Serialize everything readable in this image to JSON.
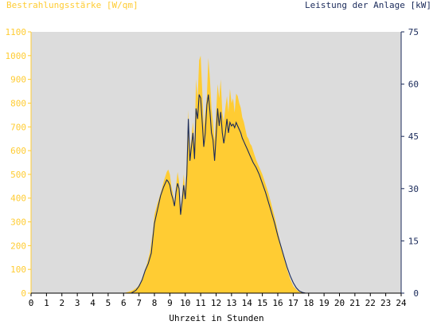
{
  "chart_data": {
    "type": "area",
    "ylabel_left": "Bestrahlungsstärke [W/qm]",
    "ylabel_right": "Leistung der Anlage [kW]",
    "xlabel": "Uhrzeit in Stunden",
    "x_ticks": [
      0,
      1,
      2,
      3,
      4,
      5,
      6,
      7,
      8,
      9,
      10,
      11,
      12,
      13,
      14,
      15,
      16,
      17,
      18,
      19,
      20,
      21,
      22,
      23,
      24
    ],
    "y_left_ticks": [
      0,
      100,
      200,
      300,
      400,
      500,
      600,
      700,
      800,
      900,
      1000,
      1100
    ],
    "y_right_ticks": [
      0,
      15,
      30,
      45,
      60,
      75
    ],
    "xlim": [
      0,
      24
    ],
    "ylim_left": [
      0,
      1100
    ],
    "ylim_right": [
      0,
      75
    ],
    "grid": false,
    "colors": {
      "plot_bg": "#dcdcdc",
      "irradiance_fill": "#ffcc33",
      "power_line": "#1a2a5a",
      "left_axis": "#ffcc33",
      "right_axis": "#1a2a5a"
    },
    "series": [
      {
        "name": "Bestrahlungsstärke [W/qm]",
        "axis": "left",
        "x": [
          6.0,
          6.3,
          6.6,
          6.9,
          7.1,
          7.3,
          7.5,
          7.7,
          7.9,
          8.0,
          8.2,
          8.4,
          8.6,
          8.8,
          8.9,
          9.0,
          9.1,
          9.2,
          9.3,
          9.4,
          9.5,
          9.6,
          9.7,
          9.8,
          9.9,
          10.0,
          10.1,
          10.2,
          10.3,
          10.4,
          10.5,
          10.6,
          10.7,
          10.8,
          10.9,
          11.0,
          11.1,
          11.2,
          11.3,
          11.4,
          11.5,
          11.6,
          11.7,
          11.8,
          11.9,
          12.0,
          12.1,
          12.2,
          12.3,
          12.4,
          12.5,
          12.6,
          12.7,
          12.8,
          12.9,
          13.0,
          13.1,
          13.2,
          13.3,
          13.4,
          13.5,
          13.6,
          13.7,
          13.8,
          13.9,
          14.0,
          14.1,
          14.2,
          14.3,
          14.4,
          14.5,
          14.6,
          14.8,
          15.0,
          15.2,
          15.4,
          15.6,
          15.8,
          16.0,
          16.2,
          16.4,
          16.6,
          16.8,
          17.0,
          17.2,
          17.4,
          17.6,
          17.8,
          18.0,
          18.2,
          18.4
        ],
        "values": [
          0,
          5,
          12,
          25,
          45,
          80,
          120,
          170,
          260,
          330,
          380,
          420,
          470,
          510,
          520,
          500,
          450,
          420,
          380,
          450,
          510,
          470,
          350,
          420,
          500,
          430,
          560,
          770,
          600,
          650,
          720,
          620,
          900,
          820,
          980,
          1000,
          850,
          700,
          760,
          830,
          990,
          900,
          780,
          720,
          640,
          760,
          880,
          820,
          900,
          760,
          720,
          780,
          830,
          760,
          860,
          800,
          820,
          760,
          840,
          830,
          800,
          780,
          740,
          720,
          690,
          660,
          650,
          630,
          620,
          600,
          580,
          560,
          530,
          500,
          460,
          420,
          370,
          320,
          260,
          200,
          150,
          100,
          60,
          30,
          15,
          5,
          2,
          0,
          0,
          0,
          0
        ],
        "note_fill": true
      },
      {
        "name": "Leistung der Anlage [kW]",
        "axis": "right",
        "x": [
          6.5,
          6.8,
          7.0,
          7.2,
          7.4,
          7.6,
          7.8,
          7.9,
          8.0,
          8.2,
          8.4,
          8.6,
          8.8,
          8.9,
          9.0,
          9.1,
          9.2,
          9.3,
          9.4,
          9.5,
          9.6,
          9.7,
          9.8,
          9.9,
          10.0,
          10.1,
          10.2,
          10.3,
          10.4,
          10.5,
          10.6,
          10.7,
          10.8,
          10.9,
          11.0,
          11.1,
          11.2,
          11.3,
          11.4,
          11.5,
          11.6,
          11.7,
          11.8,
          11.9,
          12.0,
          12.1,
          12.2,
          12.3,
          12.4,
          12.5,
          12.6,
          12.7,
          12.8,
          12.9,
          13.0,
          13.1,
          13.2,
          13.3,
          13.4,
          13.5,
          13.6,
          13.7,
          13.8,
          13.9,
          14.0,
          14.1,
          14.2,
          14.4,
          14.6,
          14.8,
          15.0,
          15.2,
          15.4,
          15.6,
          15.8,
          16.0,
          16.2,
          16.4,
          16.6,
          16.8,
          17.0,
          17.2,
          17.4,
          17.6,
          17.8,
          18.0,
          18.2,
          18.4
        ],
        "values": [
          0,
          0.8,
          2.0,
          3.8,
          6.5,
          8.5,
          11.5,
          16.0,
          20.0,
          24.0,
          28.0,
          30.5,
          32.5,
          32.0,
          31.0,
          28.5,
          27.0,
          25.0,
          29.0,
          31.5,
          30.0,
          22.5,
          26.5,
          31.0,
          27.0,
          34.0,
          50.0,
          38.0,
          42.0,
          46.0,
          38.5,
          53.0,
          50.0,
          57.0,
          56.0,
          49.0,
          42.0,
          46.0,
          54.0,
          57.0,
          52.0,
          46.0,
          44.0,
          38.0,
          45.0,
          53.0,
          48.0,
          52.0,
          46.0,
          43.0,
          46.0,
          50.0,
          46.0,
          49.0,
          48.0,
          48.5,
          47.5,
          49.0,
          48.0,
          47.0,
          46.0,
          44.5,
          43.5,
          42.5,
          41.5,
          40.5,
          39.5,
          37.5,
          36.0,
          34.0,
          31.5,
          29.0,
          26.0,
          23.0,
          20.0,
          16.5,
          13.5,
          10.5,
          7.5,
          5.0,
          3.0,
          1.5,
          0.6,
          0.2,
          0.0,
          0.0,
          0.0,
          0.0
        ]
      }
    ]
  }
}
